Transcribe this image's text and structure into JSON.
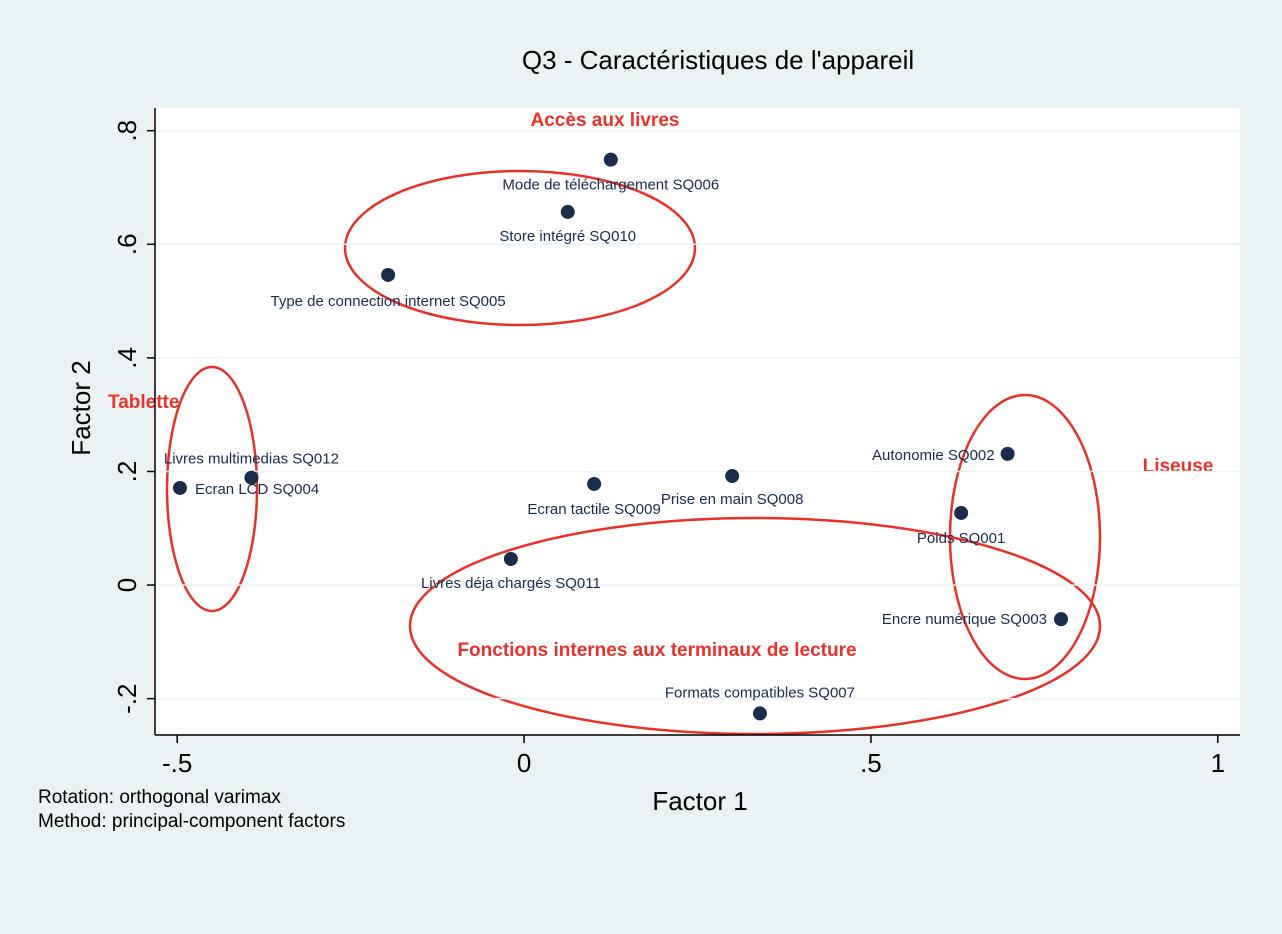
{
  "chart_data": {
    "type": "scatter",
    "title": "Q3 - Caractéristiques de l'appareil",
    "xlabel": "Factor 1",
    "ylabel": "Factor 2",
    "notes": [
      "Rotation: orthogonal varimax",
      "Method: principal-component factors"
    ],
    "annotations": [
      "Accès aux livres",
      "Tablette",
      "Liseuse",
      "Fonctions internes aux terminaux de lecture"
    ],
    "point_labels": [
      "Mode de téléchargement SQ006",
      "Store intégré SQ010",
      "Type de connection internet SQ005",
      "Livres multimedias SQ012",
      "Ecran LCD SQ004",
      "Ecran tactile SQ009",
      "Prise en main SQ008",
      "Autonomie SQ002",
      "Poids SQ001",
      "Livres déja chargés SQ011",
      "Encre numérique SQ003",
      "Formats compatibles SQ007"
    ],
    "x": [
      0.125,
      0.063,
      -0.196,
      -0.393,
      -0.496,
      0.101,
      0.3,
      0.697,
      0.63,
      -0.019,
      0.774,
      0.34
    ],
    "values": [
      0.749,
      0.657,
      0.546,
      0.189,
      0.171,
      0.178,
      0.192,
      0.231,
      0.127,
      0.046,
      -0.06,
      -0.226
    ],
    "color": "#1a2b4c",
    "xlim": [
      -0.532,
      1.032
    ],
    "ylim": [
      -0.264,
      0.84
    ],
    "xticks": [
      {
        "value": -0.5,
        "label": "-.5"
      },
      0,
      {
        "value": 0.5,
        "label": ".5"
      },
      1
    ],
    "yticks": [
      {
        "value": -0.2,
        "label": "-.2"
      },
      0,
      {
        "value": 0.2,
        "label": ".2"
      },
      {
        "value": 0.4,
        "label": ".4"
      },
      {
        "value": 0.6,
        "label": ".6"
      },
      {
        "value": 0.8,
        "label": ".8"
      }
    ],
    "grid": true
  }
}
